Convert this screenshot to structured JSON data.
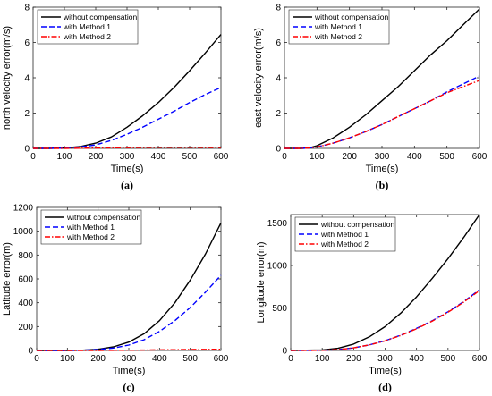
{
  "chart_data": [
    {
      "type": "line",
      "caption": "(a)",
      "xlabel": "Time(s)",
      "ylabel": "north velocity error(m/s)",
      "xlim": [
        0,
        600
      ],
      "ylim": [
        0,
        8
      ],
      "xticks": [
        0,
        100,
        200,
        300,
        400,
        500,
        600
      ],
      "yticks": [
        0,
        2,
        4,
        6,
        8
      ],
      "legend_position": "top-left",
      "x": [
        0,
        50,
        100,
        150,
        200,
        250,
        300,
        350,
        400,
        450,
        500,
        550,
        600
      ],
      "series": [
        {
          "name": "without compensation",
          "color": "#000000",
          "dash": "solid",
          "values": [
            0,
            0,
            0.02,
            0.1,
            0.3,
            0.65,
            1.2,
            1.85,
            2.6,
            3.45,
            4.4,
            5.4,
            6.45
          ]
        },
        {
          "name": "with Method 1",
          "color": "#0000ff",
          "dash": "dashed",
          "values": [
            0,
            0,
            0.02,
            0.08,
            0.2,
            0.45,
            0.8,
            1.2,
            1.65,
            2.1,
            2.6,
            3.05,
            3.45
          ]
        },
        {
          "name": "with Method 2",
          "color": "#ff0000",
          "dash": "dashdot",
          "values": [
            0,
            0,
            0,
            0.01,
            0.02,
            0.03,
            0.04,
            0.05,
            0.06,
            0.06,
            0.06,
            0.05,
            0.05
          ]
        }
      ]
    },
    {
      "type": "line",
      "caption": "(b)",
      "xlabel": "Time(s)",
      "ylabel": "east velocity error(m/s)",
      "xlim": [
        0,
        600
      ],
      "ylim": [
        0,
        8
      ],
      "xticks": [
        0,
        100,
        200,
        300,
        400,
        500,
        600
      ],
      "yticks": [
        0,
        2,
        4,
        6,
        8
      ],
      "legend_position": "top-left",
      "x": [
        0,
        50,
        75,
        100,
        150,
        200,
        250,
        300,
        350,
        400,
        450,
        500,
        550,
        600
      ],
      "series": [
        {
          "name": "without  compensation",
          "color": "#000000",
          "dash": "solid",
          "values": [
            0,
            0,
            0.02,
            0.15,
            0.6,
            1.2,
            1.9,
            2.7,
            3.5,
            4.4,
            5.3,
            6.1,
            7.0,
            7.9
          ]
        },
        {
          "name": "with Method 1",
          "color": "#0000ff",
          "dash": "dashed",
          "values": [
            0,
            0,
            0.02,
            0.08,
            0.3,
            0.6,
            0.95,
            1.35,
            1.8,
            2.25,
            2.7,
            3.2,
            3.65,
            4.1
          ]
        },
        {
          "name": "with Method 2",
          "color": "#ff0000",
          "dash": "dashdot",
          "values": [
            0,
            0,
            0.02,
            0.08,
            0.3,
            0.6,
            0.95,
            1.35,
            1.8,
            2.25,
            2.7,
            3.15,
            3.5,
            3.85
          ]
        }
      ]
    },
    {
      "type": "line",
      "caption": "(c)",
      "xlabel": "Time(s)",
      "ylabel": "Latitude error(m)",
      "xlim": [
        0,
        600
      ],
      "ylim": [
        0,
        1200
      ],
      "xticks": [
        0,
        100,
        200,
        300,
        400,
        500,
        600
      ],
      "yticks": [
        0,
        200,
        400,
        600,
        800,
        1000,
        1200
      ],
      "legend_position": "top-left",
      "x": [
        0,
        100,
        150,
        200,
        250,
        300,
        350,
        400,
        450,
        500,
        550,
        600
      ],
      "series": [
        {
          "name": "without compensation",
          "color": "#000000",
          "dash": "solid",
          "values": [
            0,
            0,
            2,
            10,
            30,
            70,
            140,
            250,
            400,
            590,
            810,
            1070
          ]
        },
        {
          "name": "with Method 1",
          "color": "#0000ff",
          "dash": "dashed",
          "values": [
            0,
            0,
            2,
            8,
            20,
            45,
            90,
            160,
            250,
            360,
            490,
            630
          ]
        },
        {
          "name": "with Method 2",
          "color": "#ff0000",
          "dash": "dashdot",
          "values": [
            0,
            0,
            0,
            0,
            1,
            2,
            3,
            5,
            6,
            8,
            9,
            10
          ]
        }
      ]
    },
    {
      "type": "line",
      "caption": "(d)",
      "xlabel": "Time(s)",
      "ylabel": "Longitude error(m)",
      "xlim": [
        0,
        600
      ],
      "ylim": [
        0,
        1600
      ],
      "xticks": [
        0,
        100,
        200,
        300,
        400,
        500,
        600
      ],
      "yticks": [
        0,
        500,
        1000,
        1500
      ],
      "legend_position": "top-left",
      "x": [
        0,
        100,
        150,
        200,
        250,
        300,
        350,
        400,
        450,
        500,
        550,
        600
      ],
      "series": [
        {
          "name": "without compensation",
          "color": "#000000",
          "dash": "solid",
          "values": [
            0,
            5,
            25,
            75,
            160,
            280,
            440,
            630,
            850,
            1080,
            1330,
            1600
          ]
        },
        {
          "name": "with Method 1",
          "color": "#0000ff",
          "dash": "dashed",
          "values": [
            0,
            2,
            10,
            30,
            65,
            115,
            180,
            260,
            350,
            455,
            575,
            715
          ]
        },
        {
          "name": "with Method 2",
          "color": "#ff0000",
          "dash": "dashdot",
          "values": [
            0,
            2,
            10,
            30,
            65,
            113,
            177,
            255,
            345,
            450,
            568,
            705
          ]
        }
      ]
    }
  ]
}
